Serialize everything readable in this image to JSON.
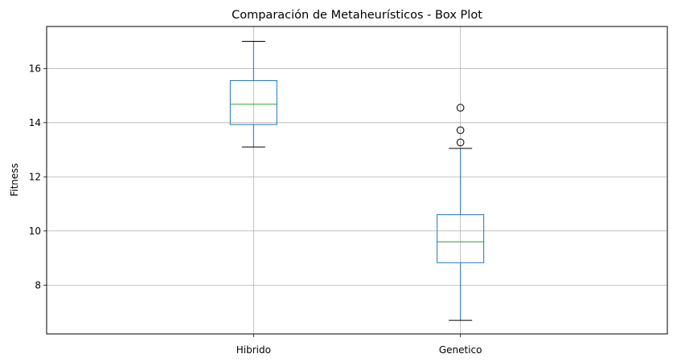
{
  "chart_data": {
    "type": "boxplot",
    "title": "Comparación de Metaheurísticos - Box Plot",
    "xlabel": "",
    "ylabel": "Fitness",
    "categories": [
      "Hibrido",
      "Genetico"
    ],
    "boxes": [
      {
        "category": "Hibrido",
        "whisker_low": 13.1,
        "q1": 13.93,
        "median": 14.68,
        "q3": 15.55,
        "whisker_high": 17.0,
        "outliers": []
      },
      {
        "category": "Genetico",
        "whisker_low": 6.7,
        "q1": 8.83,
        "median": 9.6,
        "q3": 10.6,
        "whisker_high": 13.05,
        "outliers": [
          13.27,
          13.72,
          14.55
        ]
      }
    ],
    "ylim": [
      6.2,
      17.55
    ],
    "yticks": [
      8,
      10,
      12,
      14,
      16
    ],
    "grid": true,
    "colors": {
      "box": "#1f77b4",
      "median": "#2ca02c",
      "whisker_cap": "#000000",
      "grid": "#b0b0b0"
    }
  }
}
